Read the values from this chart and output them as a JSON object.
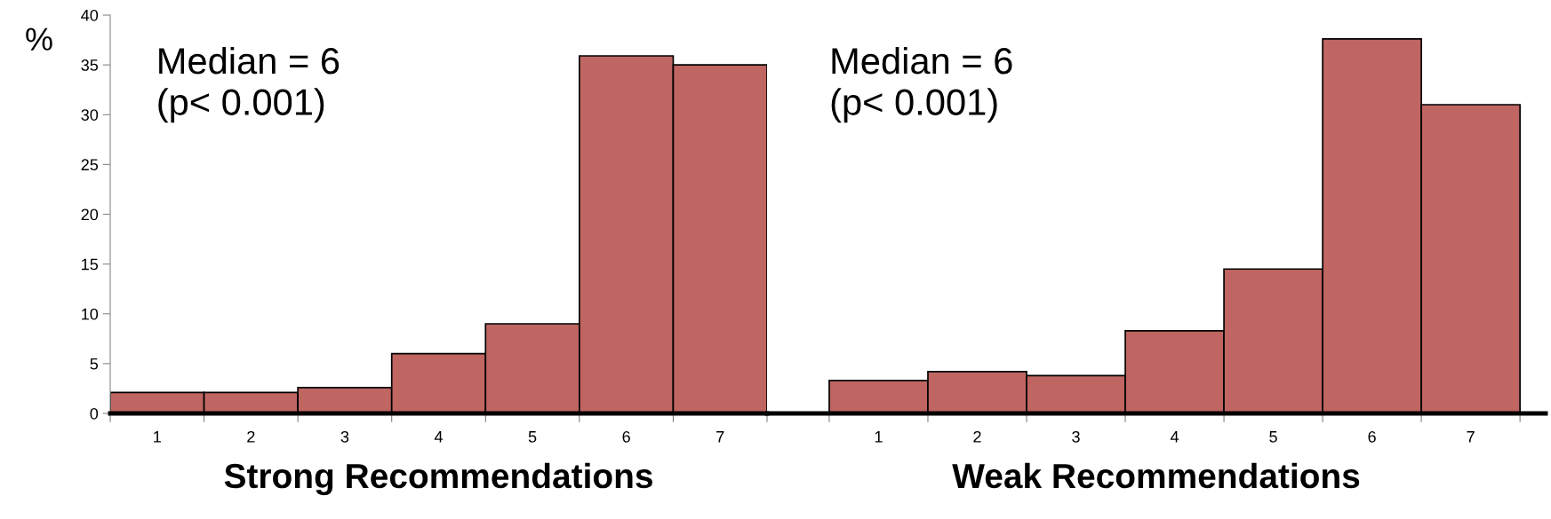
{
  "chart_data": [
    {
      "type": "bar",
      "xlabel": "Strong Recommendations",
      "ylabel": "%",
      "categories": [
        "1",
        "2",
        "3",
        "4",
        "5",
        "6",
        "7"
      ],
      "values": [
        2.1,
        2.1,
        2.6,
        6.0,
        9.0,
        35.9,
        35.0
      ],
      "color": "#bf6562",
      "ylim": [
        0,
        40
      ],
      "yticks": [
        0,
        5,
        10,
        15,
        20,
        25,
        30,
        35,
        40
      ],
      "annotations": [
        "Median = 6\n(p< 0.001)"
      ]
    },
    {
      "type": "bar",
      "xlabel": "Weak Recommendations",
      "categories": [
        "1",
        "2",
        "3",
        "4",
        "5",
        "6",
        "7"
      ],
      "values": [
        3.3,
        4.2,
        3.8,
        8.3,
        14.5,
        37.6,
        31.0
      ],
      "color": "#bf6562",
      "ylim": [
        0,
        40
      ],
      "yticks": [
        0,
        5,
        10,
        15,
        20,
        25,
        30,
        35,
        40
      ],
      "tick_labels": "x",
      "annotations": [
        "Median = 6\n(p< 0.001)"
      ]
    }
  ]
}
